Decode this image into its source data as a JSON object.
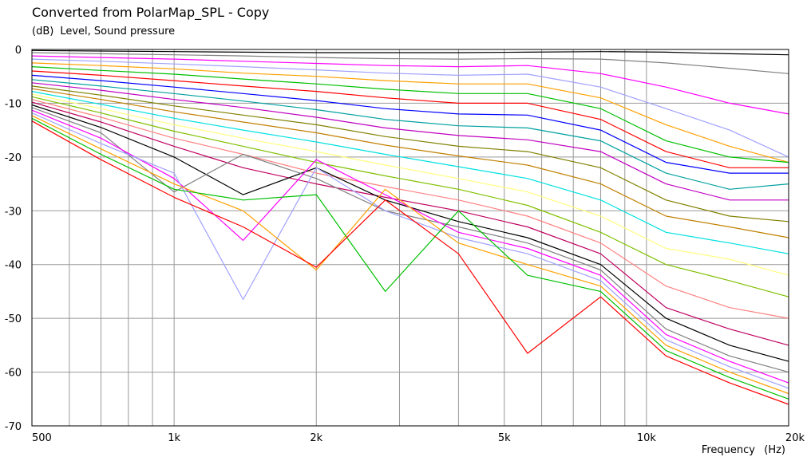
{
  "chart_data": {
    "type": "line",
    "title": "Converted from PolarMap_SPL - Copy",
    "ylabel_unit": "(dB)",
    "ylabel": "Level, Sound pressure",
    "xlabel": "Frequency",
    "xlabel_unit": "(Hz)",
    "x_scale": "log",
    "xlim": [
      500,
      20000
    ],
    "ylim": [
      -70,
      0
    ],
    "x_tick_labels": [
      {
        "value": 500,
        "label": "500"
      },
      {
        "value": 1000,
        "label": "1k"
      },
      {
        "value": 2000,
        "label": "2k"
      },
      {
        "value": 5000,
        "label": "5k"
      },
      {
        "value": 10000,
        "label": "10k"
      },
      {
        "value": 20000,
        "label": "20k"
      }
    ],
    "y_ticks": [
      0,
      -10,
      -20,
      -30,
      -40,
      -50,
      -60,
      -70
    ],
    "grid": true,
    "colors": [
      "#000000",
      "#808080",
      "#ff00ff",
      "#a0a0ff",
      "#ffa000",
      "#00c000",
      "#ff0000",
      "#0000ff",
      "#00a0a0",
      "#c000c0",
      "#808000",
      "#c08000",
      "#00e0e0",
      "#ffff80",
      "#80c000",
      "#ff8080",
      "#c00060"
    ],
    "freqs": [
      500,
      700,
      1000,
      1400,
      2000,
      2800,
      4000,
      5600,
      8000,
      11000,
      15000,
      20000
    ],
    "series": [
      {
        "values": [
          -0.2,
          -0.3,
          -0.4,
          -0.5,
          -0.6,
          -0.6,
          -0.6,
          -0.5,
          -0.4,
          -0.5,
          -0.8,
          -1.0
        ]
      },
      {
        "values": [
          -0.6,
          -0.8,
          -1.0,
          -1.2,
          -1.5,
          -1.7,
          -1.8,
          -1.7,
          -1.8,
          -2.5,
          -3.5,
          -4.5
        ]
      },
      {
        "values": [
          -1.2,
          -1.5,
          -1.8,
          -2.2,
          -2.6,
          -3.0,
          -3.2,
          -3.0,
          -4.5,
          -7.0,
          -10.0,
          -12.0
        ]
      },
      {
        "values": [
          -1.8,
          -2.2,
          -2.7,
          -3.2,
          -3.8,
          -4.4,
          -4.8,
          -4.6,
          -7.0,
          -11.0,
          -15.0,
          -20.0
        ]
      },
      {
        "values": [
          -2.5,
          -3.0,
          -3.6,
          -4.4,
          -5.0,
          -5.8,
          -6.4,
          -6.4,
          -9.0,
          -14.0,
          -18.0,
          -21.0
        ]
      },
      {
        "values": [
          -3.2,
          -3.9,
          -4.6,
          -5.5,
          -6.4,
          -7.4,
          -8.2,
          -8.2,
          -11.0,
          -17.0,
          -20.0,
          -21.0
        ]
      },
      {
        "values": [
          -4.0,
          -4.8,
          -5.8,
          -6.8,
          -7.8,
          -9.0,
          -10.0,
          -10.0,
          -13.0,
          -19.0,
          -22.0,
          -22.0
        ]
      },
      {
        "values": [
          -4.8,
          -5.8,
          -7.0,
          -8.2,
          -9.5,
          -11.0,
          -12.0,
          -12.2,
          -15.0,
          -21.0,
          -23.0,
          -23.0
        ]
      },
      {
        "values": [
          -5.6,
          -6.8,
          -8.2,
          -9.6,
          -11.2,
          -13.0,
          -14.2,
          -14.6,
          -17.0,
          -23.0,
          -26.0,
          -25.0
        ]
      },
      {
        "values": [
          -6.2,
          -7.6,
          -9.3,
          -10.8,
          -12.6,
          -14.6,
          -16.0,
          -16.8,
          -19.0,
          -25.0,
          -28.0,
          -28.0
        ]
      },
      {
        "values": [
          -6.8,
          -8.5,
          -10.5,
          -12.2,
          -14.0,
          -16.2,
          -18.0,
          -19.0,
          -22.0,
          -28.0,
          -31.0,
          -32.0
        ]
      },
      {
        "values": [
          -7.3,
          -9.3,
          -11.6,
          -13.5,
          -15.5,
          -17.8,
          -19.8,
          -21.5,
          -25.0,
          -31.0,
          -33.0,
          -35.0
        ]
      },
      {
        "values": [
          -7.8,
          -10.2,
          -12.8,
          -15.0,
          -17.2,
          -19.5,
          -21.8,
          -24.0,
          -28.0,
          -34.0,
          -36.0,
          -38.0
        ]
      },
      {
        "values": [
          -8.3,
          -11.0,
          -14.0,
          -16.5,
          -19.0,
          -21.5,
          -24.0,
          -26.5,
          -31.0,
          -37.0,
          -39.0,
          -42.0
        ]
      },
      {
        "values": [
          -8.8,
          -11.8,
          -15.2,
          -18.0,
          -21.0,
          -23.5,
          -26.0,
          -29.0,
          -34.0,
          -40.0,
          -43.0,
          -46.0
        ]
      },
      {
        "values": [
          -9.3,
          -12.6,
          -16.5,
          -19.5,
          -23.0,
          -25.5,
          -28.0,
          -31.0,
          -36.0,
          -44.0,
          -48.0,
          -50.0
        ]
      },
      {
        "values": [
          -9.8,
          -13.5,
          -18.0,
          -22.0,
          -25.0,
          -27.5,
          -30.0,
          -33.0,
          -38.0,
          -48.0,
          -52.0,
          -55.0
        ]
      },
      {
        "values": [
          -10.3,
          -14.5,
          -20.0,
          -27.0,
          -22.0,
          -28.0,
          -32.0,
          -35.0,
          -40.0,
          -50.0,
          -55.0,
          -58.0
        ]
      },
      {
        "values": [
          -10.8,
          -15.5,
          -26.5,
          -19.5,
          -24.0,
          -30.0,
          -33.0,
          -36.0,
          -41.0,
          -52.0,
          -57.0,
          -60.0
        ]
      },
      {
        "values": [
          -11.3,
          -16.5,
          -24.0,
          -35.5,
          -20.5,
          -27.0,
          -34.0,
          -37.0,
          -42.0,
          -53.0,
          -58.0,
          -62.0
        ]
      },
      {
        "values": [
          -11.8,
          -17.5,
          -23.0,
          -46.5,
          -22.0,
          -30.0,
          -35.0,
          -38.0,
          -43.0,
          -54.0,
          -59.0,
          -63.0
        ]
      },
      {
        "values": [
          -12.3,
          -18.5,
          -25.0,
          -30.0,
          -41.0,
          -26.0,
          -36.0,
          -40.0,
          -44.0,
          -55.0,
          -60.0,
          -64.0
        ]
      },
      {
        "values": [
          -12.8,
          -19.5,
          -26.0,
          -28.0,
          -27.0,
          -45.0,
          -30.0,
          -42.0,
          -45.0,
          -56.0,
          -61.0,
          -65.0
        ]
      },
      {
        "values": [
          -13.3,
          -20.5,
          -27.5,
          -33.0,
          -40.5,
          -28.0,
          -38.0,
          -56.5,
          -46.0,
          -57.0,
          -62.0,
          -66.0
        ]
      }
    ]
  }
}
